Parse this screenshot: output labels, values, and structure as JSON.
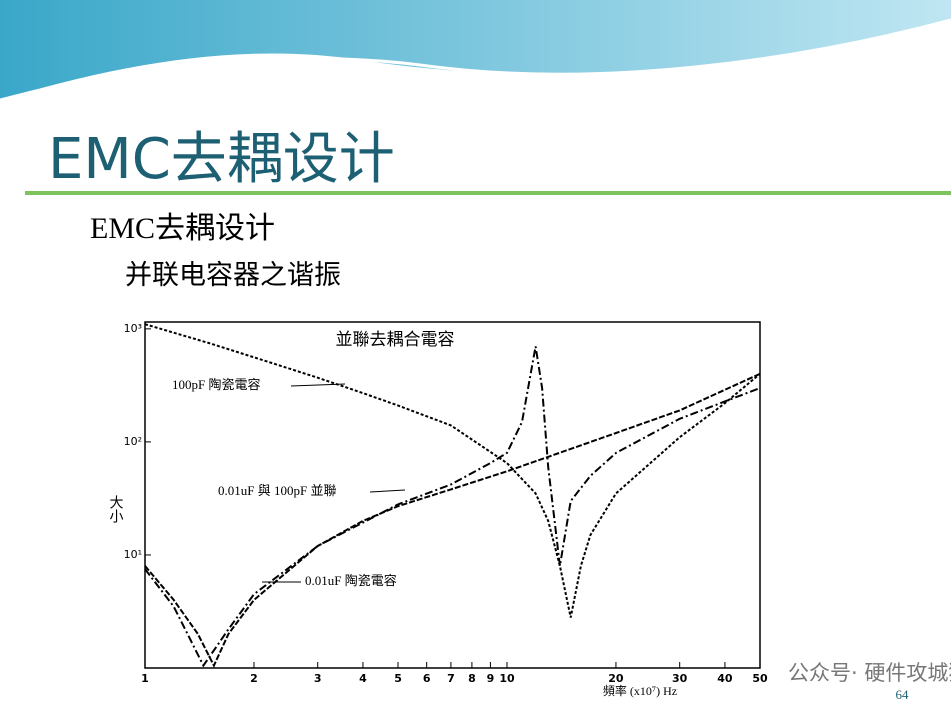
{
  "slide": {
    "title": "EMC去耦设计",
    "heading": "EMC去耦设计",
    "subheading": "并联电容器之谐振",
    "page_number": "64",
    "watermark": "公众号· 硬件攻城狮"
  },
  "chart_data": {
    "type": "line",
    "title": "並聯去耦合電容",
    "x_label": "頻率 (x10⁷) Hz",
    "y_label": "大小",
    "log_x": true,
    "log_y": true,
    "xlim": [
      1,
      50
    ],
    "ylim": [
      1,
      1150
    ],
    "xticks": [
      1,
      2,
      3,
      4,
      5,
      6,
      7,
      8,
      9,
      10,
      20,
      30,
      40,
      50
    ],
    "yticks": [
      {
        "value": 10,
        "label": "10¹"
      },
      {
        "value": 100,
        "label": "10²"
      },
      {
        "value": 1000,
        "label": "10³"
      }
    ],
    "series": [
      {
        "name": "100pF 陶瓷電容",
        "color": "#000000",
        "x": [
          1,
          1.5,
          2,
          3,
          4,
          5,
          7,
          10,
          12,
          13,
          14,
          15,
          16,
          17,
          20,
          30,
          40,
          50
        ],
        "values": [
          1100,
          750,
          560,
          370,
          270,
          210,
          140,
          65,
          35,
          20,
          8,
          2.8,
          8,
          15,
          35,
          110,
          220,
          400
        ]
      },
      {
        "name": "0.01uF 陶瓷電容",
        "color": "#000000",
        "x": [
          1,
          1.2,
          1.4,
          1.55,
          1.7,
          2,
          3,
          4,
          5,
          7,
          10,
          20,
          30,
          50
        ],
        "values": [
          8,
          4,
          2,
          1.05,
          2,
          4,
          12,
          20,
          27,
          38,
          55,
          120,
          190,
          400
        ]
      },
      {
        "name": "0.01uF 與 100pF 並聯",
        "color": "#000000",
        "x": [
          1,
          1.2,
          1.45,
          1.7,
          2,
          3,
          5,
          7,
          9,
          10,
          11,
          12,
          12.5,
          13,
          14,
          15,
          17,
          20,
          30,
          50
        ],
        "values": [
          7.5,
          3.5,
          1.05,
          2.2,
          4.5,
          12,
          28,
          42,
          65,
          80,
          150,
          700,
          300,
          60,
          8,
          30,
          50,
          80,
          160,
          300
        ]
      }
    ]
  }
}
